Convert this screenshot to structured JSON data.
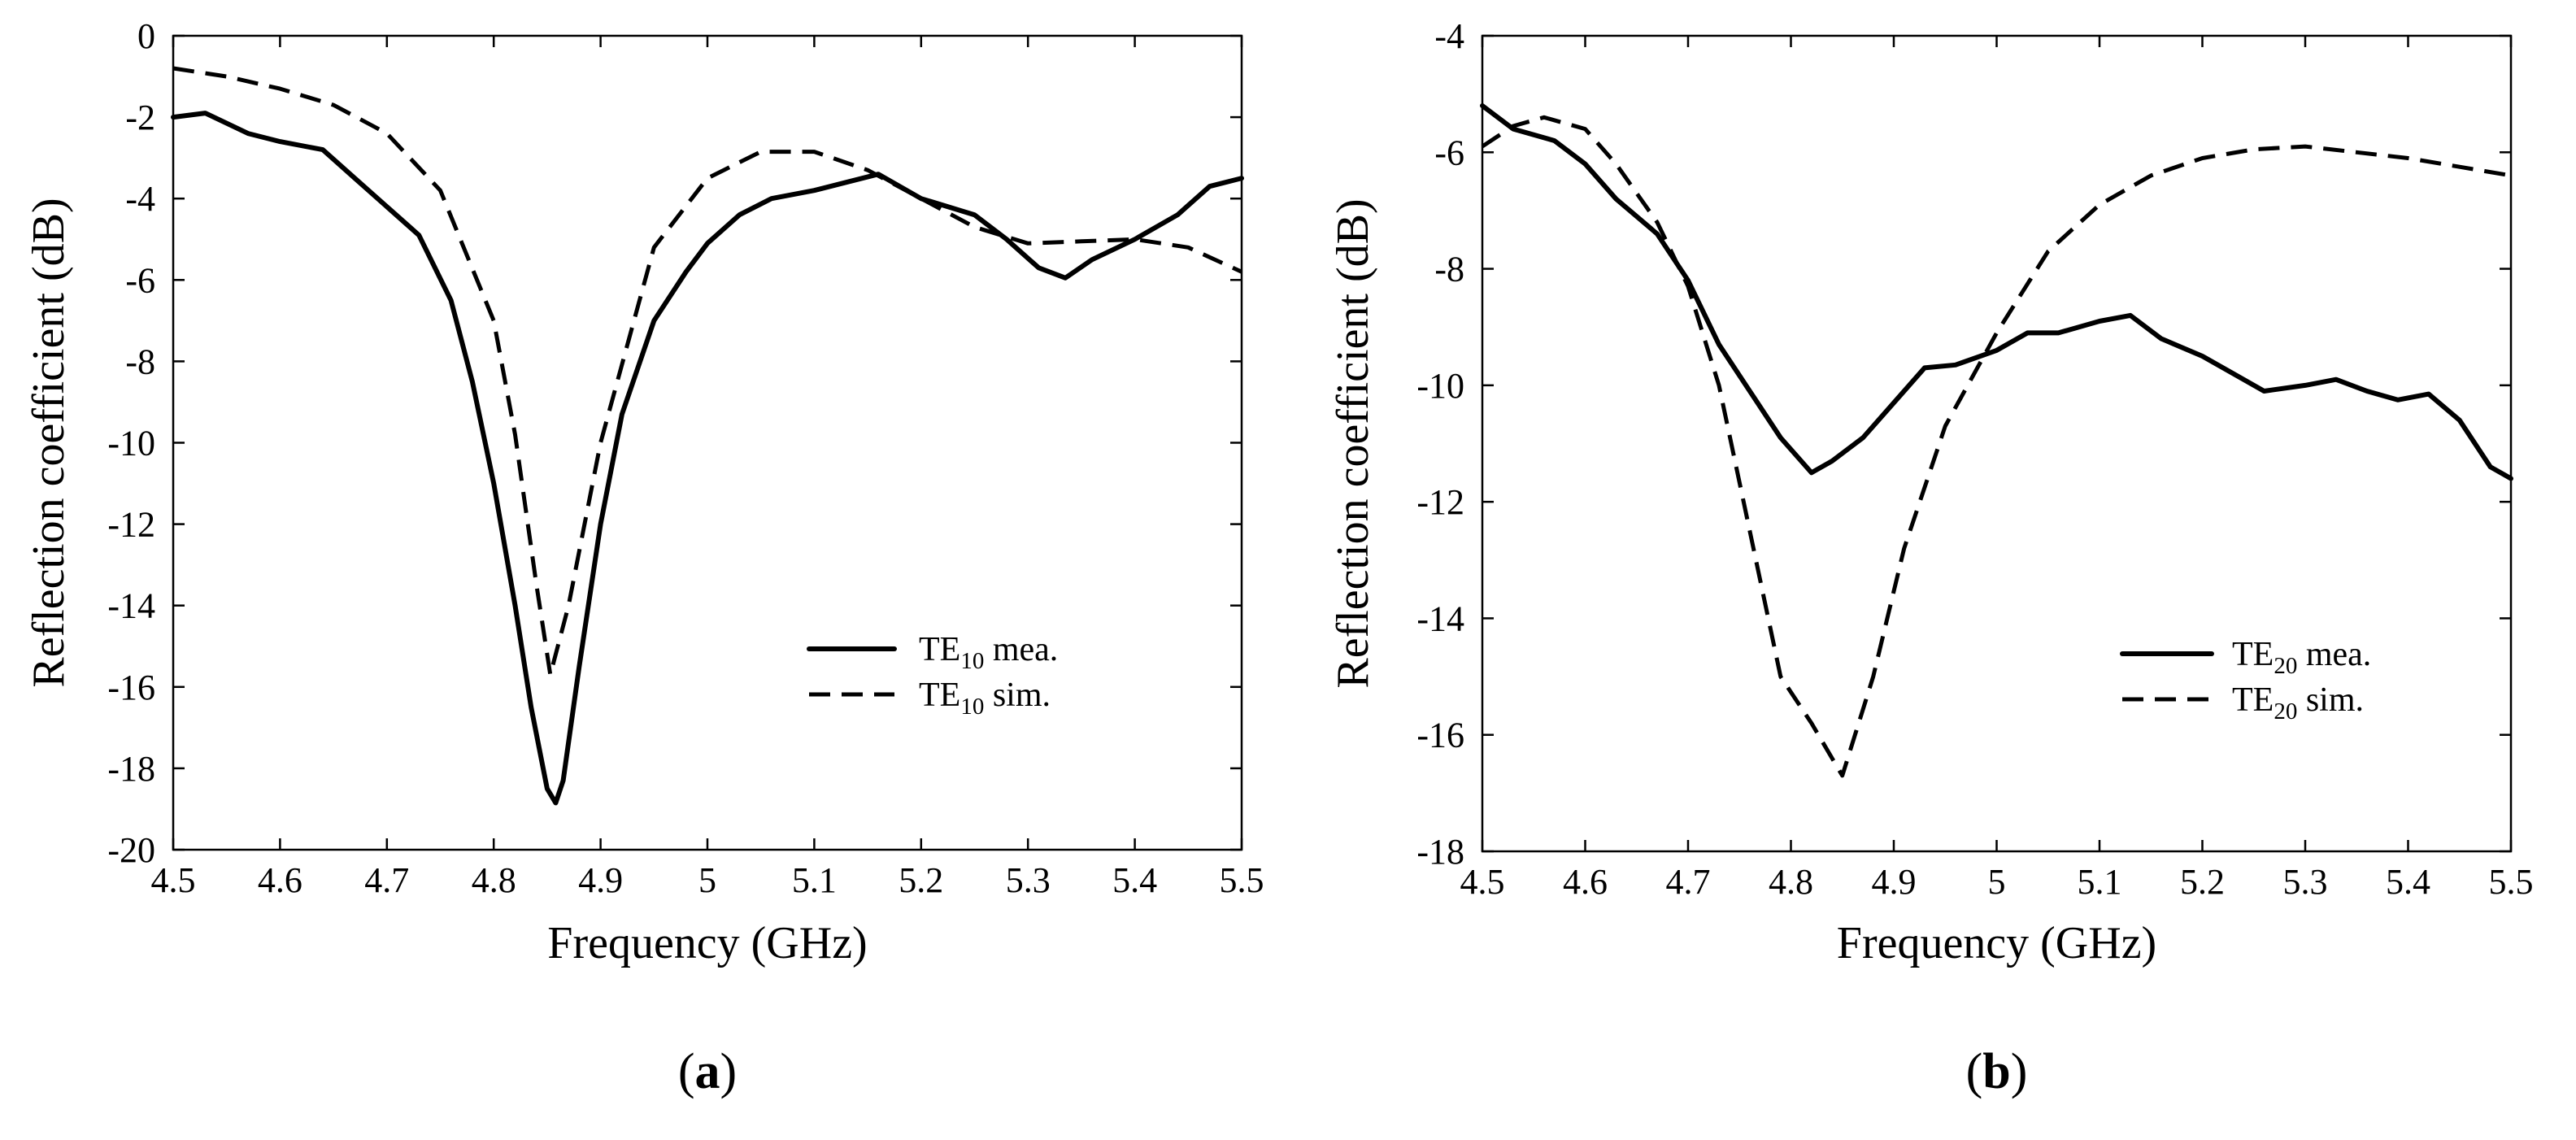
{
  "chart_data": [
    {
      "type": "line",
      "panel_label": "a",
      "xlabel": "Frequency (GHz)",
      "ylabel": "Reflection coefficient (dB)",
      "xlim": [
        4.5,
        5.5
      ],
      "ylim": [
        -20,
        0
      ],
      "xticks": [
        4.5,
        4.6,
        4.7,
        4.8,
        4.9,
        5.0,
        5.1,
        5.2,
        5.3,
        5.4,
        5.5
      ],
      "xtick_labels": [
        "4.5",
        "4.6",
        "4.7",
        "4.8",
        "4.9",
        "5",
        "5.1",
        "5.2",
        "5.3",
        "5.4",
        "5.5"
      ],
      "yticks": [
        0,
        -2,
        -4,
        -6,
        -8,
        -10,
        -12,
        -14,
        -16,
        -18,
        -20
      ],
      "ytick_labels": [
        "0",
        "-2",
        "-4",
        "-6",
        "-8",
        "-10",
        "-12",
        "-14",
        "-16",
        "-18",
        "-20"
      ],
      "grid": false,
      "legend_position": "lower-right",
      "series": [
        {
          "name": "TE10 mea.",
          "legend_main": "TE",
          "legend_sub": "10",
          "legend_suffix": " mea.",
          "style": "solid",
          "x": [
            4.5,
            4.53,
            4.57,
            4.6,
            4.64,
            4.67,
            4.7,
            4.73,
            4.76,
            4.78,
            4.8,
            4.82,
            4.835,
            4.85,
            4.858,
            4.865,
            4.88,
            4.9,
            4.92,
            4.95,
            4.98,
            5.0,
            5.03,
            5.06,
            5.1,
            5.13,
            5.16,
            5.2,
            5.25,
            5.28,
            5.31,
            5.335,
            5.36,
            5.4,
            5.44,
            5.47,
            5.5
          ],
          "y": [
            -2.0,
            -1.9,
            -2.4,
            -2.6,
            -2.8,
            -3.5,
            -4.2,
            -4.9,
            -6.5,
            -8.5,
            -11.0,
            -14.0,
            -16.5,
            -18.5,
            -18.85,
            -18.3,
            -15.5,
            -12.0,
            -9.3,
            -7.0,
            -5.8,
            -5.1,
            -4.4,
            -4.0,
            -3.8,
            -3.6,
            -3.4,
            -4.0,
            -4.4,
            -5.0,
            -5.7,
            -5.95,
            -5.5,
            -5.0,
            -4.4,
            -3.7,
            -3.5
          ]
        },
        {
          "name": "TE10 sim.",
          "legend_main": "TE",
          "legend_sub": "10",
          "legend_suffix": " sim.",
          "style": "dashed",
          "x": [
            4.5,
            4.55,
            4.6,
            4.65,
            4.7,
            4.75,
            4.8,
            4.82,
            4.84,
            4.853,
            4.87,
            4.9,
            4.95,
            5.0,
            5.05,
            5.1,
            5.15,
            5.2,
            5.25,
            5.3,
            5.35,
            5.4,
            5.45,
            5.5
          ],
          "y": [
            -0.8,
            -1.0,
            -1.3,
            -1.7,
            -2.4,
            -3.8,
            -7.0,
            -9.8,
            -13.5,
            -15.7,
            -14.0,
            -10.0,
            -5.2,
            -3.5,
            -2.85,
            -2.85,
            -3.3,
            -4.0,
            -4.7,
            -5.1,
            -5.05,
            -5.0,
            -5.2,
            -5.8
          ]
        }
      ]
    },
    {
      "type": "line",
      "panel_label": "b",
      "xlabel": "Frequency (GHz)",
      "ylabel": "Reflection coefficient (dB)",
      "xlim": [
        4.5,
        5.5
      ],
      "ylim": [
        -18,
        -4
      ],
      "xticks": [
        4.5,
        4.6,
        4.7,
        4.8,
        4.9,
        5.0,
        5.1,
        5.2,
        5.3,
        5.4,
        5.5
      ],
      "xtick_labels": [
        "4.5",
        "4.6",
        "4.7",
        "4.8",
        "4.9",
        "5",
        "5.1",
        "5.2",
        "5.3",
        "5.4",
        "5.5"
      ],
      "yticks": [
        -4,
        -6,
        -8,
        -10,
        -12,
        -14,
        -16,
        -18
      ],
      "ytick_labels": [
        "-4",
        "-6",
        "-8",
        "-10",
        "-12",
        "-14",
        "-16",
        "-18"
      ],
      "grid": false,
      "legend_position": "lower-right",
      "series": [
        {
          "name": "TE20 mea.",
          "legend_main": "TE",
          "legend_sub": "20",
          "legend_suffix": " mea.",
          "style": "solid",
          "x": [
            4.5,
            4.53,
            4.57,
            4.6,
            4.63,
            4.67,
            4.7,
            4.73,
            4.76,
            4.79,
            4.82,
            4.84,
            4.87,
            4.9,
            4.93,
            4.96,
            5.0,
            5.03,
            5.06,
            5.1,
            5.13,
            5.16,
            5.2,
            5.23,
            5.26,
            5.3,
            5.33,
            5.36,
            5.39,
            5.42,
            5.45,
            5.48,
            5.5
          ],
          "y": [
            -5.2,
            -5.6,
            -5.8,
            -6.2,
            -6.8,
            -7.4,
            -8.2,
            -9.3,
            -10.1,
            -10.9,
            -11.5,
            -11.3,
            -10.9,
            -10.3,
            -9.7,
            -9.65,
            -9.4,
            -9.1,
            -9.1,
            -8.9,
            -8.8,
            -9.2,
            -9.5,
            -9.8,
            -10.1,
            -10.0,
            -9.9,
            -10.1,
            -10.25,
            -10.15,
            -10.6,
            -11.4,
            -11.6
          ]
        },
        {
          "name": "TE20 sim.",
          "legend_main": "TE",
          "legend_sub": "20",
          "legend_suffix": " sim.",
          "style": "dashed",
          "x": [
            4.5,
            4.53,
            4.56,
            4.6,
            4.63,
            4.67,
            4.7,
            4.73,
            4.76,
            4.79,
            4.82,
            4.85,
            4.88,
            4.91,
            4.95,
            5.0,
            5.05,
            5.1,
            5.15,
            5.2,
            5.25,
            5.3,
            5.35,
            5.4,
            5.45,
            5.5
          ],
          "y": [
            -5.9,
            -5.55,
            -5.4,
            -5.6,
            -6.2,
            -7.2,
            -8.3,
            -10.0,
            -12.5,
            -15.0,
            -15.8,
            -16.7,
            -15.0,
            -12.8,
            -10.7,
            -9.1,
            -7.7,
            -6.9,
            -6.4,
            -6.1,
            -5.95,
            -5.9,
            -6.0,
            -6.1,
            -6.25,
            -6.4
          ]
        }
      ]
    }
  ]
}
